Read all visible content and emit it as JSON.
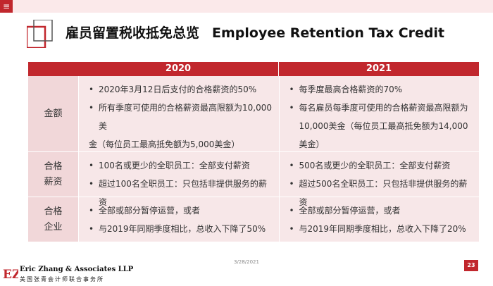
{
  "menu": {
    "icon": "hamburger-menu-icon",
    "glyph": "≡"
  },
  "title": {
    "cn": "雇员留置税收抵免总览",
    "en": "Employee Retention Tax Credit"
  },
  "table": {
    "headers": [
      "2020",
      "2021"
    ],
    "rows": [
      {
        "label": "金额",
        "col2020": [
          "2020年3月12日后支付的合格薪资的50%",
          "所有季度可使用的合格薪资最高限额为10,000美",
          "金（每位员工最高抵免额为5,000美金）"
        ],
        "col2021": [
          "每季度最高合格薪资的70%",
          "每名雇员每季度可使用的合格薪资最高限额为",
          "10,000美金（每位员工最高抵免额为14,000美金）"
        ]
      },
      {
        "label_lines": [
          "合格",
          "薪资"
        ],
        "col2020": [
          "100名或更少的全职员工：全部支付薪资",
          "超过100名全职员工：只包括非提供服务的薪资"
        ],
        "col2021": [
          "500名或更少的全职员工：全部支付薪资",
          "超过500名全职员工：只包括非提供服务的薪资"
        ]
      },
      {
        "label_lines": [
          "合格",
          "企业"
        ],
        "col2020": [
          "全部或部分暂停运营，或者",
          "与2019年同期季度相比，总收入下降了50%"
        ],
        "col2021": [
          "全部或部分暂停运营，或者",
          "与2019年同期季度相比，总收入下降了20%"
        ]
      }
    ]
  },
  "footer": {
    "date": "3/28/2021",
    "page": "23",
    "firm_en": "Eric Zhang & Associates LLP",
    "firm_cn": "美国张青会计师联合事务所",
    "logo_text": "EZ"
  },
  "colors": {
    "accent": "#c1272d",
    "cell_bg": "#f7e7e8",
    "label_bg": "#f1d7d9"
  }
}
